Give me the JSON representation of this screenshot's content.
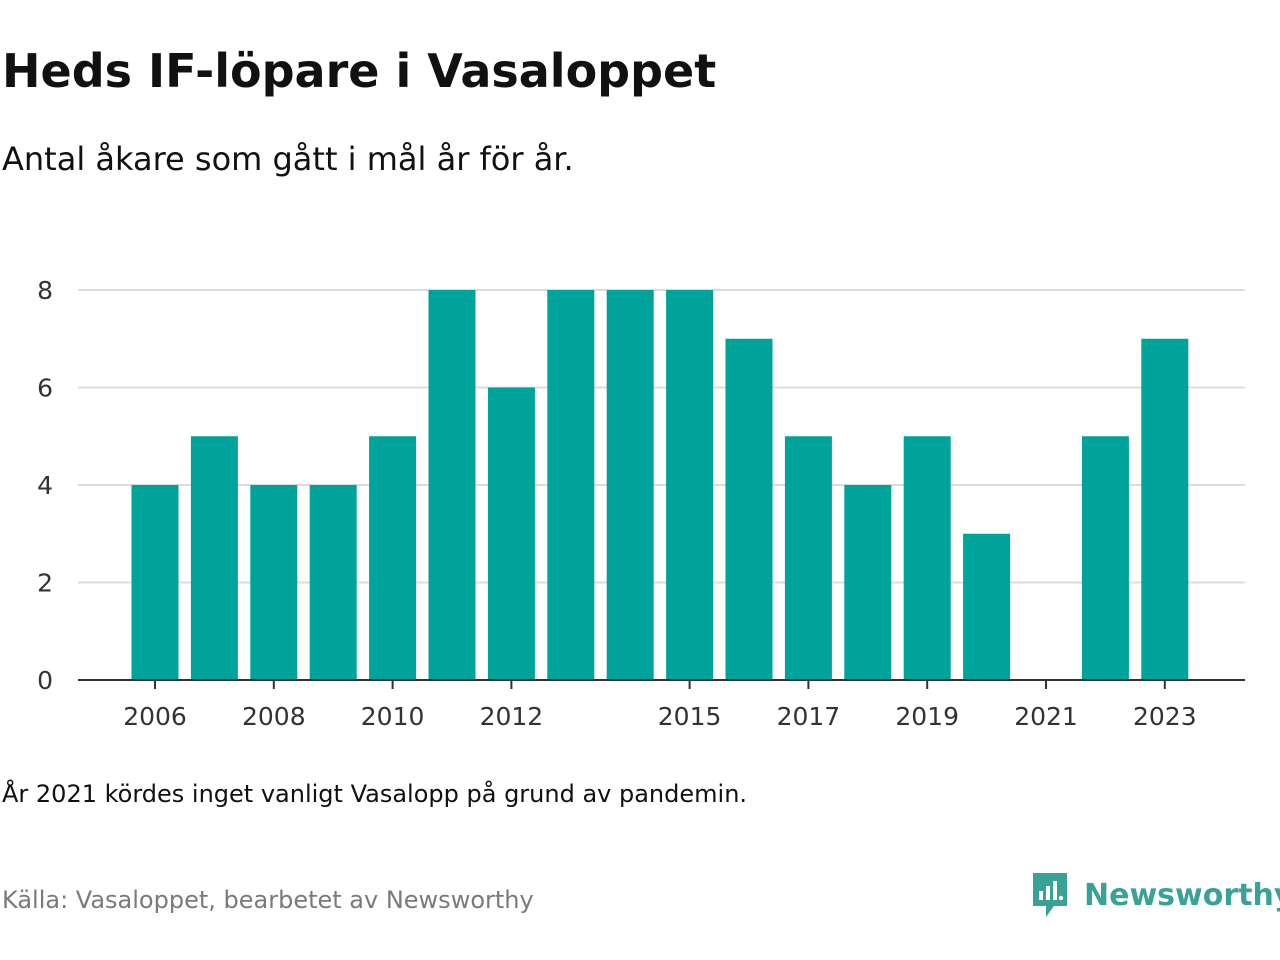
{
  "title": "Heds IF-löpare i Vasaloppet",
  "subtitle": "Antal åkare som gått i mål år för år.",
  "note": "År 2021 kördes inget vanligt Vasalopp på grund av pandemin.",
  "source": "Källa: Vasaloppet, bearbetet av Newsworthy",
  "brand": {
    "name": "Newsworthy",
    "color": "#3aa197",
    "icon": "newsworthy-logo-icon"
  },
  "colors": {
    "bar": "#00a39a",
    "grid": "#dcdcdc",
    "axis": "#333333"
  },
  "chart_data": {
    "type": "bar",
    "title": "Heds IF-löpare i Vasaloppet",
    "subtitle": "Antal åkare som gått i mål år för år.",
    "xlabel": "",
    "ylabel": "",
    "categories": [
      2006,
      2007,
      2008,
      2009,
      2010,
      2011,
      2012,
      2013,
      2014,
      2015,
      2016,
      2017,
      2018,
      2019,
      2020,
      2021,
      2022,
      2023
    ],
    "values": [
      4,
      5,
      4,
      4,
      5,
      8,
      6,
      8,
      8,
      8,
      7,
      5,
      4,
      5,
      3,
      0,
      5,
      7
    ],
    "x_tick_labels": [
      "2006",
      "2008",
      "2010",
      "2012",
      "2015",
      "2017",
      "2019",
      "2021",
      "2023"
    ],
    "y_ticks": [
      0,
      2,
      4,
      6,
      8
    ],
    "ylim": [
      0,
      8
    ],
    "grid": true,
    "legend": "none"
  }
}
